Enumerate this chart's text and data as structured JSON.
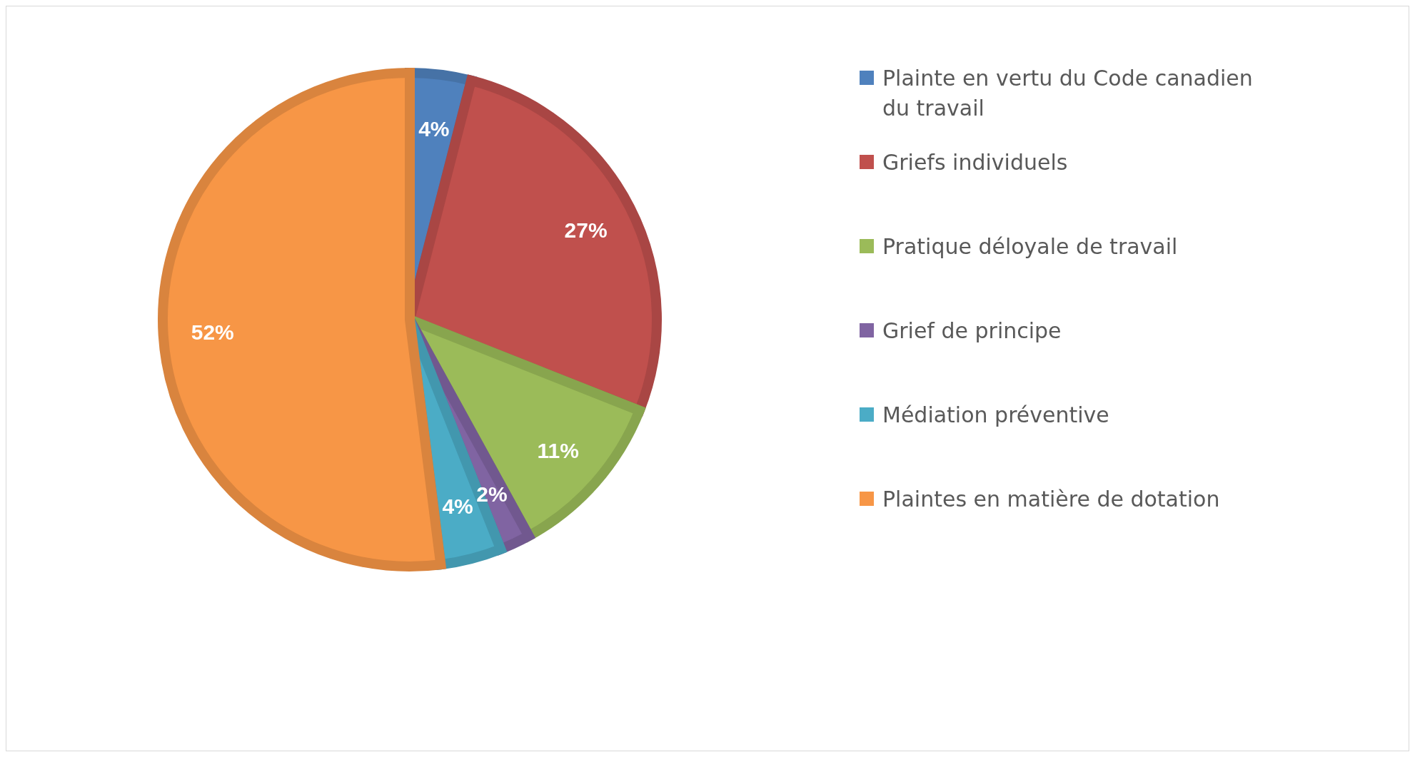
{
  "chart_data": {
    "type": "pie",
    "categories": [
      "Plainte en vertu du Code canadien du travail",
      "Griefs individuels",
      "Pratique déloyale de travail",
      "Grief de principe",
      "Médiation préventive",
      "Plaintes en matière de dotation"
    ],
    "values": [
      4,
      27,
      11,
      2,
      4,
      52
    ],
    "value_labels": [
      "4%",
      "27%",
      "11%",
      "2%",
      "4%",
      "52%"
    ],
    "colors": [
      "#4f81bd",
      "#c0504d",
      "#9bbb59",
      "#8064a2",
      "#4bacc6",
      "#f79646"
    ],
    "legend": "right"
  }
}
